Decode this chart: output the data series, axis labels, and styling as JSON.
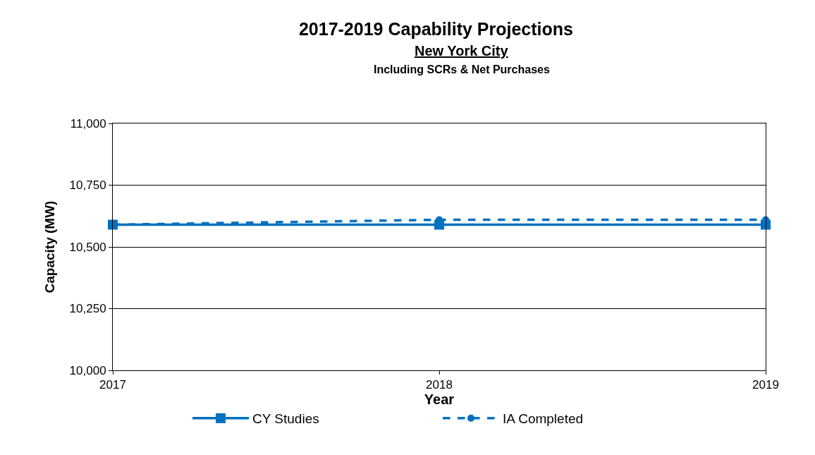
{
  "chart_data": {
    "type": "line",
    "title": "2017-2019 Capability Projections",
    "subtitle": "New York City",
    "annotations": [
      "Including SCRs & Net Purchases"
    ],
    "xlabel": "Year",
    "ylabel": "Capacity (MW)",
    "x": [
      2017,
      2018,
      2019
    ],
    "series": [
      {
        "name": "CY Studies",
        "color": "#0070c0",
        "values": [
          10590,
          10590,
          10590
        ],
        "marker": "square",
        "line_style": "solid"
      },
      {
        "name": "IA Completed",
        "color": "#0070c0",
        "values": [
          10590,
          10610,
          10610
        ],
        "marker": "circle",
        "line_style": "dashed"
      }
    ],
    "xlim": [
      2017,
      2019
    ],
    "xticks": [
      2017,
      2018,
      2019
    ],
    "ylim": [
      10000,
      11000
    ],
    "yticks": [
      {
        "value": 10000,
        "label": "10,000"
      },
      {
        "value": 10250,
        "label": "10,250"
      },
      {
        "value": 10500,
        "label": "10,500"
      },
      {
        "value": 10750,
        "label": "10,750"
      },
      {
        "value": 11000,
        "label": "11,000"
      }
    ],
    "grid": "y",
    "legend": "bottom"
  }
}
